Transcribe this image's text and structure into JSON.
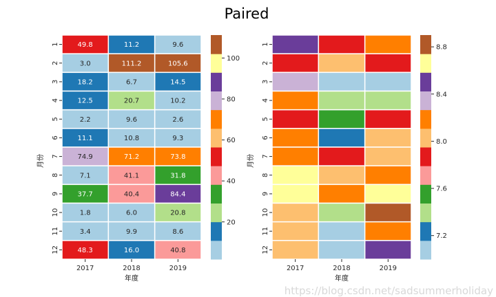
{
  "figure": {
    "title": "Paired",
    "watermark": "https://blog.csdn.net/sadsummerholiday"
  },
  "palette": [
    "#a6cee3",
    "#1f78b4",
    "#b2df8a",
    "#33a02c",
    "#fb9a99",
    "#e31a1c",
    "#fdbf6f",
    "#ff7f00",
    "#cab2d6",
    "#6a3d9a",
    "#ffff99",
    "#b15928"
  ],
  "chart_data": [
    {
      "type": "heatmap",
      "title": "",
      "xlabel": "年度",
      "ylabel": "月份",
      "x_categories": [
        "2017",
        "2018",
        "2019"
      ],
      "y_categories": [
        "1",
        "2",
        "3",
        "4",
        "5",
        "6",
        "7",
        "8",
        "9",
        "10",
        "11",
        "12"
      ],
      "annotated": true,
      "values": [
        [
          49.8,
          11.2,
          9.6
        ],
        [
          3.0,
          111.2,
          105.6
        ],
        [
          18.2,
          6.7,
          14.5
        ],
        [
          12.5,
          20.7,
          10.2
        ],
        [
          2.2,
          9.6,
          2.6
        ],
        [
          11.1,
          10.8,
          9.3
        ],
        [
          74.9,
          71.2,
          73.8
        ],
        [
          7.1,
          41.1,
          31.8
        ],
        [
          37.7,
          40.4,
          84.4
        ],
        [
          1.8,
          6.0,
          20.8
        ],
        [
          3.4,
          9.9,
          8.6
        ],
        [
          48.3,
          16.0,
          40.8
        ]
      ],
      "colormap": "Paired",
      "vmin": 1.8,
      "vmax": 111.2,
      "colorbar": {
        "ticks": [
          20,
          40,
          60,
          80,
          100
        ],
        "tick_labels": [
          "20",
          "40",
          "60",
          "80",
          "100"
        ]
      }
    },
    {
      "type": "heatmap",
      "title": "",
      "xlabel": "年度",
      "ylabel": "月份",
      "x_categories": [
        "2017",
        "2018",
        "2019"
      ],
      "y_categories": [
        "1",
        "2",
        "3",
        "4",
        "5",
        "6",
        "7",
        "8",
        "9",
        "10",
        "11",
        "12"
      ],
      "annotated": false,
      "values": [
        [
          8.5,
          7.9,
          8.2
        ],
        [
          7.9,
          8.0,
          7.9
        ],
        [
          8.3,
          7.1,
          7.1
        ],
        [
          8.2,
          7.4,
          7.4
        ],
        [
          7.9,
          7.6,
          7.9
        ],
        [
          8.2,
          7.2,
          8.0
        ],
        [
          8.2,
          7.9,
          8.0
        ],
        [
          8.7,
          8.0,
          8.2
        ],
        [
          8.7,
          8.2,
          8.7
        ],
        [
          8.0,
          7.4,
          8.8
        ],
        [
          8.0,
          7.1,
          8.2
        ],
        [
          8.0,
          7.1,
          8.5
        ]
      ],
      "colormap": "Paired",
      "vmin": 7.0,
      "vmax": 8.9,
      "colorbar": {
        "ticks": [
          7.2,
          7.6,
          8.0,
          8.4,
          8.8
        ],
        "tick_labels": [
          "7.2",
          "7.6",
          "8.0",
          "8.4",
          "8.8"
        ]
      }
    }
  ]
}
